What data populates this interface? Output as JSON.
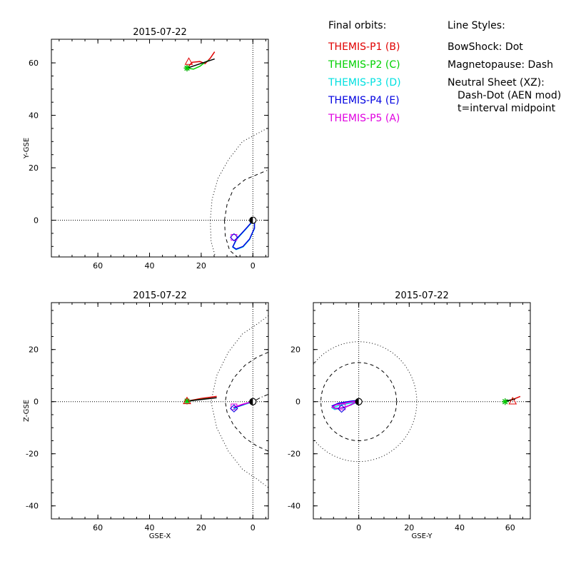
{
  "legend": {
    "orbits_heading": "Final orbits:",
    "probes": [
      {
        "label": "THEMIS-P1 (B)",
        "color": "#e00000"
      },
      {
        "label": "THEMIS-P2 (C)",
        "color": "#00d000"
      },
      {
        "label": "THEMIS-P3 (D)",
        "color": "#00e0e0"
      },
      {
        "label": "THEMIS-P4 (E)",
        "color": "#0000e0"
      },
      {
        "label": "THEMIS-P5 (A)",
        "color": "#e000e0"
      }
    ],
    "styles_heading": "Line Styles:",
    "styles": [
      "BowShock: Dot",
      "Magnetopause: Dash",
      "Neutral Sheet (XZ):",
      "Dash-Dot (AEN mod)",
      "t=interval midpoint"
    ]
  },
  "chart_data": [
    {
      "id": "xy",
      "type": "line",
      "title": "2015-07-22",
      "xlabel": "",
      "ylabel": "Y-GSE",
      "xlim": [
        78,
        -6
      ],
      "ylim": [
        -14,
        69
      ],
      "xticks": [
        "60",
        "40",
        "20",
        "0"
      ],
      "xtick_values": [
        60,
        40,
        20,
        0
      ],
      "yticks": [
        "0",
        "20",
        "40",
        "60"
      ],
      "ytick_values": [
        0,
        20,
        40,
        60
      ],
      "series": [
        {
          "color": "#e00000",
          "points": [
            [
              25.5,
              58
            ],
            [
              23.5,
              60.2
            ],
            [
              20.5,
              60.5
            ],
            [
              18.5,
              59.7
            ],
            [
              16.5,
              61.8
            ],
            [
              14.8,
              64.2
            ]
          ]
        },
        {
          "color": "#00d000",
          "points": [
            [
              25.5,
              58
            ],
            [
              23,
              57.6
            ],
            [
              20.5,
              58.7
            ],
            [
              18.5,
              60.2
            ],
            [
              17,
              61
            ]
          ]
        },
        {
          "color": "#000000",
          "points": [
            [
              25.5,
              58
            ],
            [
              14.8,
              61.5
            ]
          ]
        },
        {
          "color": "#00e0e0",
          "closed": true,
          "points": [
            [
              -0.6,
              0.3
            ],
            [
              2.5,
              -3.2
            ],
            [
              6.3,
              -7.3
            ],
            [
              7.8,
              -10.3
            ],
            [
              6.5,
              -11.2
            ],
            [
              3.8,
              -10.2
            ],
            [
              1.3,
              -7.4
            ],
            [
              -0.6,
              -3.2
            ]
          ]
        },
        {
          "color": "#0000e0",
          "closed": true,
          "points": [
            [
              -0.6,
              0.5
            ],
            [
              2.5,
              -3
            ],
            [
              6.3,
              -7.1
            ],
            [
              7.8,
              -10.1
            ],
            [
              6.5,
              -11
            ],
            [
              3.8,
              -10
            ],
            [
              1.3,
              -7.2
            ],
            [
              -0.6,
              -3
            ]
          ]
        }
      ],
      "markers": [
        {
          "shape": "asterisk",
          "color": "#000000",
          "x": 25.5,
          "y": 58
        },
        {
          "shape": "asterisk",
          "color": "#00d000",
          "x": 25.5,
          "y": 58
        },
        {
          "shape": "triangle",
          "color": "#e00000",
          "x": 24.8,
          "y": 60.5
        },
        {
          "shape": "square",
          "color": "#e000e0",
          "x": 7.3,
          "y": -6.5
        },
        {
          "shape": "diamond",
          "color": "#0000e0",
          "x": 7.3,
          "y": -6.5
        },
        {
          "shape": "earth",
          "color": "#000000",
          "x": 0,
          "y": 0
        }
      ],
      "boundaries": [
        {
          "style": "dot",
          "points": [
            [
              16.5,
              0
            ],
            [
              16.2,
              -8
            ],
            [
              14.5,
              -14
            ]
          ],
          "lower": [
            [
              16.5,
              0
            ],
            [
              15.8,
              8
            ],
            [
              13.5,
              16
            ],
            [
              9.5,
              23
            ],
            [
              4,
              30
            ],
            [
              -5.5,
              35
            ]
          ]
        },
        {
          "style": "dash",
          "points": [
            [
              11,
              0
            ],
            [
              10.7,
              -6
            ],
            [
              9,
              -11.5
            ],
            [
              6,
              -14
            ]
          ],
          "lower": [
            [
              11,
              0
            ],
            [
              10,
              6
            ],
            [
              7.5,
              12
            ],
            [
              3,
              15.5
            ],
            [
              -5.5,
              19
            ]
          ]
        }
      ]
    },
    {
      "id": "xz",
      "type": "line",
      "title": "2015-07-22",
      "xlabel": "GSE-X",
      "ylabel": "Z-GSE",
      "xlim": [
        78,
        -6
      ],
      "ylim": [
        -45,
        38
      ],
      "xticks": [
        "60",
        "40",
        "20",
        "0"
      ],
      "xtick_values": [
        60,
        40,
        20,
        0
      ],
      "yticks": [
        "20",
        "0",
        "-20",
        "-40"
      ],
      "ytick_values": [
        20,
        0,
        -20,
        -40
      ],
      "series": [
        {
          "color": "#e00000",
          "points": [
            [
              25.5,
              0.2
            ],
            [
              20,
              1.2
            ],
            [
              14,
              2
            ]
          ]
        },
        {
          "color": "#00d000",
          "points": [
            [
              25.5,
              0.2
            ],
            [
              20.5,
              0.8
            ],
            [
              17,
              1.2
            ]
          ]
        },
        {
          "color": "#000000",
          "points": [
            [
              25.5,
              0.2
            ],
            [
              14,
              1.5
            ]
          ]
        },
        {
          "color": "#00e0e0",
          "points": [
            [
              -0.6,
              0
            ],
            [
              3,
              -1
            ],
            [
              6,
              -2
            ],
            [
              7.5,
              -3
            ]
          ]
        },
        {
          "color": "#0000e0",
          "points": [
            [
              -0.6,
              0.4
            ],
            [
              3,
              -0.8
            ],
            [
              6,
              -1.7
            ],
            [
              7.5,
              -2.4
            ],
            [
              5,
              -1.6
            ],
            [
              2,
              -0.5
            ],
            [
              -0.6,
              0.4
            ]
          ]
        },
        {
          "color": "#e000e0",
          "points": [
            [
              7.5,
              -2.2
            ],
            [
              4,
              -1
            ],
            [
              -0.6,
              0.1
            ]
          ]
        }
      ],
      "markers": [
        {
          "shape": "asterisk",
          "color": "#000000",
          "x": 25.5,
          "y": 0.2
        },
        {
          "shape": "asterisk",
          "color": "#00d000",
          "x": 25.5,
          "y": 0.2
        },
        {
          "shape": "triangle",
          "color": "#e00000",
          "x": 25.5,
          "y": 0.3
        },
        {
          "shape": "square",
          "color": "#e000e0",
          "x": 7.3,
          "y": -2
        },
        {
          "shape": "diamond",
          "color": "#0000e0",
          "x": 7.3,
          "y": -2.6
        },
        {
          "shape": "earth",
          "color": "#000000",
          "x": 0,
          "y": 0
        }
      ],
      "boundaries": [
        {
          "style": "dot",
          "points": [
            [
              -6,
              33
            ],
            [
              -2,
              30
            ],
            [
              4,
              26
            ],
            [
              9.5,
              19
            ],
            [
              14,
              10
            ],
            [
              16.2,
              0
            ],
            [
              14,
              -10
            ],
            [
              9.5,
              -19
            ],
            [
              4,
              -26
            ],
            [
              -2,
              -30
            ],
            [
              -6,
              -33
            ]
          ]
        },
        {
          "style": "dash",
          "points": [
            [
              -6,
              19
            ],
            [
              -1.5,
              17
            ],
            [
              3,
              14
            ],
            [
              7.5,
              9
            ],
            [
              10,
              4
            ],
            [
              10.7,
              0
            ],
            [
              10,
              -4
            ],
            [
              7.5,
              -9
            ],
            [
              3,
              -14
            ],
            [
              -1.5,
              -17
            ],
            [
              -6,
              -19
            ]
          ]
        },
        {
          "style": "dashdot",
          "points": [
            [
              -6,
              2.8
            ],
            [
              -3,
              1.6
            ],
            [
              -1,
              0.5
            ]
          ]
        }
      ]
    },
    {
      "id": "yz",
      "type": "line",
      "title": "2015-07-22",
      "xlabel": "GSE-Y",
      "ylabel": "",
      "xlim": [
        -18,
        68
      ],
      "ylim": [
        -45,
        38
      ],
      "xticks": [
        "0",
        "20",
        "40",
        "60"
      ],
      "xtick_values": [
        0,
        20,
        40,
        60
      ],
      "yticks": [
        "20",
        "0",
        "-20",
        "-40"
      ],
      "ytick_values": [
        20,
        0,
        -20,
        -40
      ],
      "series": [
        {
          "color": "#e00000",
          "points": [
            [
              58,
              0
            ],
            [
              61.5,
              1
            ],
            [
              64,
              2
            ]
          ]
        },
        {
          "color": "#00d000",
          "points": [
            [
              58,
              0.2
            ],
            [
              60.5,
              0.6
            ],
            [
              61.5,
              1.2
            ]
          ]
        },
        {
          "color": "#000000",
          "points": [
            [
              58,
              0.2
            ],
            [
              62,
              1
            ]
          ]
        },
        {
          "color": "#00e0e0",
          "closed": true,
          "points": [
            [
              0,
              0
            ],
            [
              -3,
              -0.5
            ],
            [
              -8,
              -1.5
            ],
            [
              -10.5,
              -2.4
            ],
            [
              -9.5,
              -3
            ],
            [
              -7,
              -2.5
            ],
            [
              -3,
              -1.2
            ]
          ]
        },
        {
          "color": "#0000e0",
          "closed": true,
          "points": [
            [
              0,
              0.5
            ],
            [
              -3,
              0.2
            ],
            [
              -8,
              -0.6
            ],
            [
              -10.5,
              -1.6
            ],
            [
              -9.5,
              -2.6
            ],
            [
              -6,
              -2.4
            ],
            [
              -3,
              -1.2
            ]
          ]
        },
        {
          "color": "#e000e0",
          "closed": true,
          "points": [
            [
              0,
              0.3
            ],
            [
              -4,
              -0.3
            ],
            [
              -9,
              -1.2
            ],
            [
              -10.5,
              -2.1
            ],
            [
              -9,
              -2.8
            ],
            [
              -5,
              -2
            ]
          ]
        }
      ],
      "markers": [
        {
          "shape": "asterisk",
          "color": "#000000",
          "x": 58,
          "y": 0
        },
        {
          "shape": "asterisk",
          "color": "#00d000",
          "x": 58,
          "y": 0
        },
        {
          "shape": "triangle",
          "color": "#e00000",
          "x": 61,
          "y": 0.2
        },
        {
          "shape": "square",
          "color": "#e000e0",
          "x": -6.5,
          "y": -2
        },
        {
          "shape": "diamond",
          "color": "#0000e0",
          "x": -6.8,
          "y": -2.7
        },
        {
          "shape": "earth",
          "color": "#000000",
          "x": 0,
          "y": 0
        }
      ],
      "boundaries": [
        {
          "style": "dot",
          "circle": true,
          "radius": 23
        },
        {
          "style": "dash",
          "circle": true,
          "radius": 15
        }
      ]
    }
  ]
}
